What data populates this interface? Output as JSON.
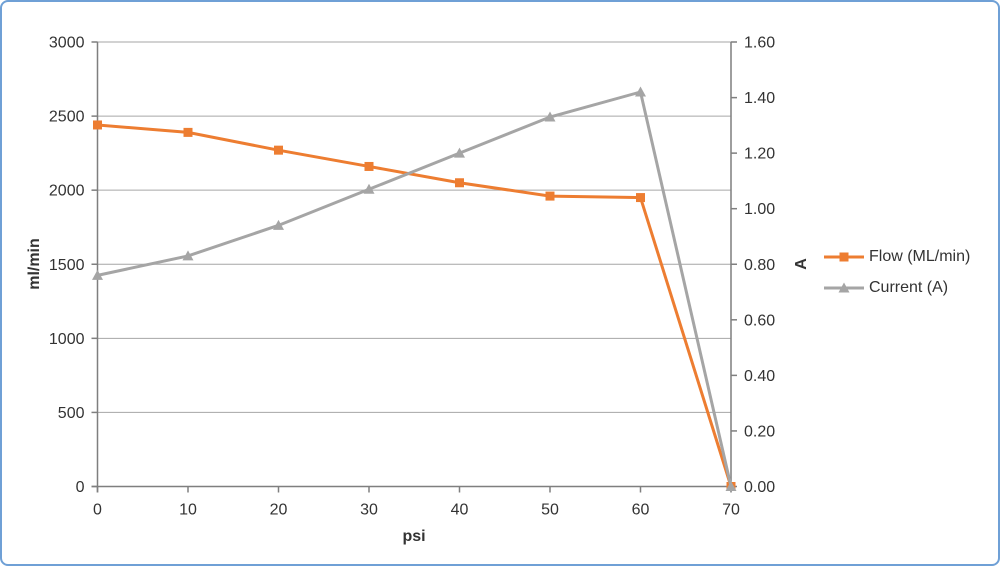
{
  "window": {
    "background": "#FFFFFF",
    "border_color": "#6FA0D6"
  },
  "chart_data": {
    "type": "line",
    "title": "",
    "xlabel": "psi",
    "ylabel_left": "ml/min",
    "ylabel_right": "A",
    "x": [
      0,
      10,
      20,
      30,
      40,
      50,
      60,
      70
    ],
    "xlim": [
      0,
      70
    ],
    "ylim_left": [
      0,
      3000
    ],
    "ylim_right": [
      0,
      1.6
    ],
    "xticks": [
      0,
      10,
      20,
      30,
      40,
      50,
      60,
      70
    ],
    "yticks_left": [
      0,
      500,
      1000,
      1500,
      2000,
      2500,
      3000
    ],
    "yticks_right": [
      0.0,
      0.2,
      0.4,
      0.6,
      0.8,
      1.0,
      1.2,
      1.4,
      1.6
    ],
    "grid": "horizontal",
    "legend_position": "right",
    "series": [
      {
        "name": "Flow (ML/min)",
        "axis": "left",
        "color": "#ED7D31",
        "marker": "square",
        "values": [
          2440,
          2390,
          2270,
          2160,
          2050,
          1960,
          1950,
          0
        ]
      },
      {
        "name": "Current (A)",
        "axis": "right",
        "color": "#A5A5A5",
        "marker": "triangle",
        "values": [
          0.76,
          0.83,
          0.94,
          1.07,
          1.2,
          1.33,
          1.42,
          0.0
        ]
      }
    ],
    "colors": {
      "gridline": "#A6A6A6",
      "axis_line": "#7F7F7F",
      "text": "#333333"
    }
  }
}
